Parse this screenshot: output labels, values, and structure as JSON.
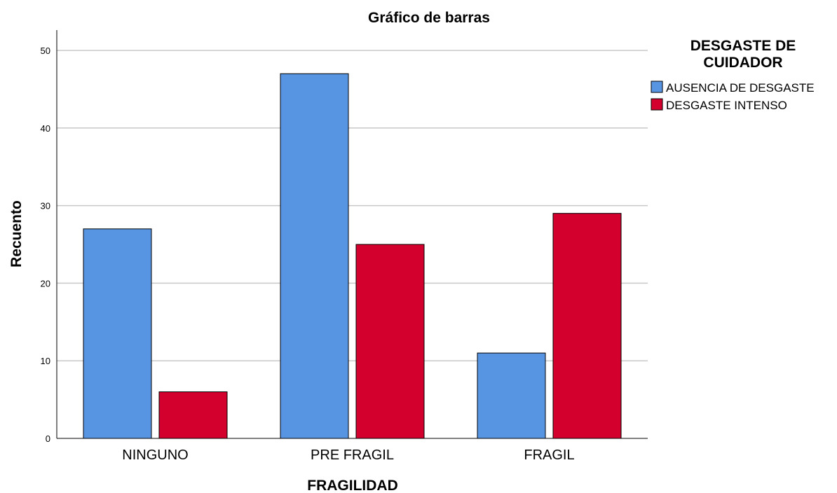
{
  "chart_data": {
    "type": "bar",
    "title": "Gráfico de barras",
    "xlabel": "FRAGILIDAD",
    "ylabel": "Recuento",
    "ylim": [
      0,
      52
    ],
    "yticks": [
      0,
      10,
      20,
      30,
      40,
      50
    ],
    "grid": true,
    "categories": [
      "NINGUNO",
      "PRE FRAGIL",
      "FRAGIL"
    ],
    "legend": {
      "title_lines": [
        "DESGASTE DE",
        "CUIDADOR"
      ],
      "placement": "top-right"
    },
    "series": [
      {
        "name": "AUSENCIA DE DESGASTE",
        "color": "#5795e3",
        "values": [
          27,
          47,
          11
        ]
      },
      {
        "name": "DESGASTE INTENSO",
        "color": "#d3002e",
        "values": [
          6,
          25,
          29
        ]
      }
    ]
  }
}
